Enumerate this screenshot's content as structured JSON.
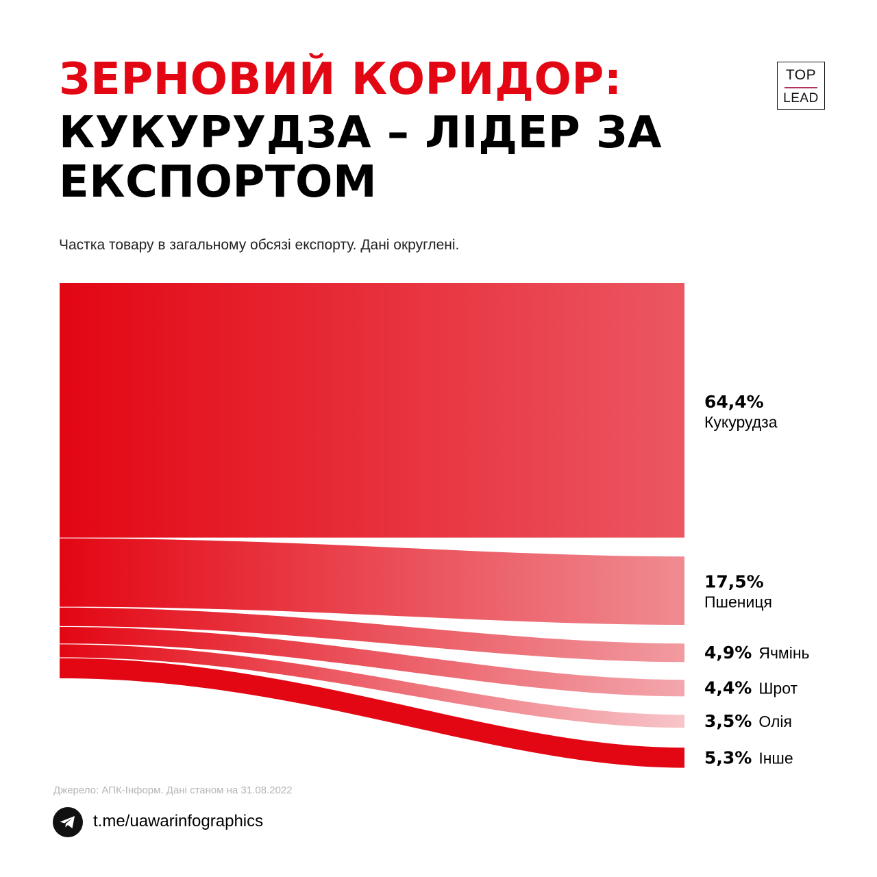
{
  "title": {
    "line1": "ЗЕРНОВИЙ КОРИДОР:",
    "line2": "КУКУРУДЗА – ЛІДЕР ЗА",
    "line3": "ЕКСПОРТОМ"
  },
  "logo": {
    "top": "TOP",
    "bottom": "LEAD"
  },
  "subtitle": "Частка товару в загальному обсязі експорту. Дані округлені.",
  "source": "Джерело: АПК-Інформ. Дані станом на 31.08.2022",
  "footer": {
    "link": "t.me/uawarinfographics",
    "icon": "telegram-icon"
  },
  "colors": {
    "accent": "#e30613",
    "text": "#000000"
  },
  "chart_data": {
    "type": "sankey",
    "unit": "%",
    "series": [
      {
        "name": "Кукурудза",
        "value": 64.4,
        "value_label": "64,4%"
      },
      {
        "name": "Пшениця",
        "value": 17.5,
        "value_label": "17,5%"
      },
      {
        "name": "Ячмінь",
        "value": 4.9,
        "value_label": "4,9%"
      },
      {
        "name": "Шрот",
        "value": 4.4,
        "value_label": "4,4%"
      },
      {
        "name": "Олія",
        "value": 3.5,
        "value_label": "3,5%"
      },
      {
        "name": "Інше",
        "value": 5.3,
        "value_label": "5,3%"
      }
    ]
  }
}
